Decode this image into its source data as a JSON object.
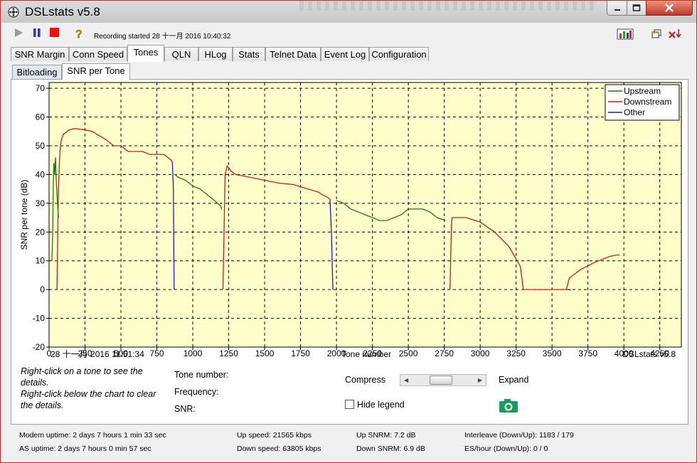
{
  "window": {
    "title": "DSLstats v5.8"
  },
  "toolbar": {
    "recording": "Recording started 28 十一月 2016 10:40:32",
    "icons": [
      "play-icon",
      "pause-icon",
      "stop-icon",
      "help-icon",
      "chart-icon",
      "restore-icon",
      "exit-icon"
    ]
  },
  "tabs": [
    "SNR Margin",
    "Conn Speed",
    "Tones",
    "QLN",
    "HLog",
    "Stats",
    "Telnet Data",
    "Event Log",
    "Configuration"
  ],
  "active_tab": "Tones",
  "subtabs": [
    "Bitloading",
    "SNR per Tone"
  ],
  "active_subtab": "SNR per Tone",
  "chart_data": {
    "type": "line",
    "title": "",
    "xlabel": "Tone number",
    "ylabel": "SNR per tone (dB)",
    "xlim": [
      0,
      4400
    ],
    "ylim": [
      -20,
      72
    ],
    "xticks": [
      0,
      250,
      500,
      750,
      1000,
      1250,
      1500,
      1750,
      2000,
      2250,
      2500,
      2750,
      3000,
      3250,
      3500,
      3750,
      4000,
      4250
    ],
    "yticks": [
      70,
      60,
      50,
      40,
      30,
      20,
      10,
      0,
      -10,
      -20
    ],
    "grid": true,
    "background": "#ffffcc",
    "legend_position": "top-right",
    "timestamp": "28 十一月 2016 11:51:34",
    "watermark": "DSLstats v5.8",
    "series": [
      {
        "name": "Upstream",
        "color": "#1a7a1a",
        "segments": [
          [
            [
              20,
              10
            ],
            [
              25,
              20
            ],
            [
              30,
              38
            ],
            [
              33,
              44
            ],
            [
              38,
              40
            ],
            [
              45,
              46
            ],
            [
              48,
              40
            ],
            [
              55,
              33
            ],
            [
              65,
              25
            ]
          ],
          [
            [
              875,
              40
            ],
            [
              900,
              39
            ],
            [
              950,
              38
            ],
            [
              1000,
              36
            ],
            [
              1050,
              35
            ],
            [
              1100,
              33
            ],
            [
              1150,
              31
            ],
            [
              1195,
              29
            ],
            [
              1200,
              28
            ]
          ],
          [
            [
              2000,
              31
            ],
            [
              2050,
              30
            ],
            [
              2100,
              28
            ],
            [
              2200,
              26
            ],
            [
              2300,
              24
            ],
            [
              2350,
              24
            ],
            [
              2400,
              25
            ],
            [
              2450,
              26
            ],
            [
              2500,
              28
            ],
            [
              2550,
              28
            ],
            [
              2600,
              28
            ],
            [
              2650,
              27
            ],
            [
              2700,
              25
            ],
            [
              2760,
              24
            ]
          ]
        ]
      },
      {
        "name": "Downstream",
        "color": "#d01818",
        "segments": [
          [
            [
              55,
              0
            ],
            [
              65,
              35
            ],
            [
              75,
              48
            ],
            [
              85,
              52
            ],
            [
              100,
              54
            ],
            [
              140,
              55.5
            ],
            [
              180,
              56
            ],
            [
              250,
              55.5
            ],
            [
              300,
              55
            ],
            [
              350,
              53.5
            ],
            [
              400,
              52
            ],
            [
              450,
              50
            ],
            [
              500,
              50
            ],
            [
              550,
              48
            ],
            [
              600,
              48
            ],
            [
              650,
              48
            ],
            [
              700,
              47
            ],
            [
              750,
              47
            ],
            [
              800,
              47
            ],
            [
              850,
              45
            ],
            [
              860,
              44
            ]
          ],
          [
            [
              1210,
              0
            ],
            [
              1225,
              40
            ],
            [
              1240,
              43
            ],
            [
              1270,
              41
            ],
            [
              1300,
              40
            ],
            [
              1400,
              39
            ],
            [
              1500,
              38
            ],
            [
              1600,
              37
            ],
            [
              1700,
              36.5
            ],
            [
              1800,
              35
            ],
            [
              1870,
              34
            ],
            [
              1900,
              33
            ],
            [
              1940,
              32
            ],
            [
              1960,
              31
            ]
          ],
          [
            [
              2790,
              0
            ],
            [
              2800,
              22
            ],
            [
              2805,
              25
            ],
            [
              2900,
              25
            ],
            [
              3000,
              23.5
            ],
            [
              3100,
              20
            ],
            [
              3200,
              15
            ],
            [
              3280,
              8
            ],
            [
              3300,
              0
            ],
            [
              3600,
              0
            ],
            [
              3620,
              4
            ],
            [
              3700,
              7
            ],
            [
              3800,
              9.5
            ],
            [
              3900,
              11.5
            ],
            [
              3950,
              12
            ],
            [
              3970,
              12
            ]
          ]
        ]
      },
      {
        "name": "Other",
        "color": "#1a1ab8",
        "segments": [
          [
            [
              858,
              44
            ],
            [
              865,
              35
            ],
            [
              870,
              0
            ]
          ],
          [
            [
              1955,
              31
            ],
            [
              1965,
              20
            ],
            [
              1975,
              0
            ]
          ],
          [
            [
              3620,
              0
            ],
            [
              3630,
              -0.3
            ]
          ]
        ]
      }
    ]
  },
  "details": {
    "help_line1": "Right-click on a tone to see the details.",
    "help_line2": "Right-click below the chart to clear the details.",
    "tone_label": "Tone number:",
    "freq_label": "Frequency:",
    "snr_label": "SNR:",
    "compress": "Compress",
    "expand": "Expand",
    "scroll_position": 0.45,
    "hide_legend": "Hide legend",
    "hide_legend_checked": false
  },
  "status": {
    "modem_uptime": "Modem uptime: 2 days 7 hours 1 min 33 sec",
    "as_uptime": "AS uptime: 2 days 7 hours 0 min 57 sec",
    "up_speed": "Up speed: 21565 kbps",
    "down_speed": "Down speed: 63805 kbps",
    "up_snrm": "Up SNRM: 7.2 dB",
    "down_snrm": "Down SNRM: 6.9 dB",
    "interleave": "Interleave (Down/Up): 1183 / 179",
    "es_hour": "ES/hour (Down/Up): 0 / 0"
  }
}
